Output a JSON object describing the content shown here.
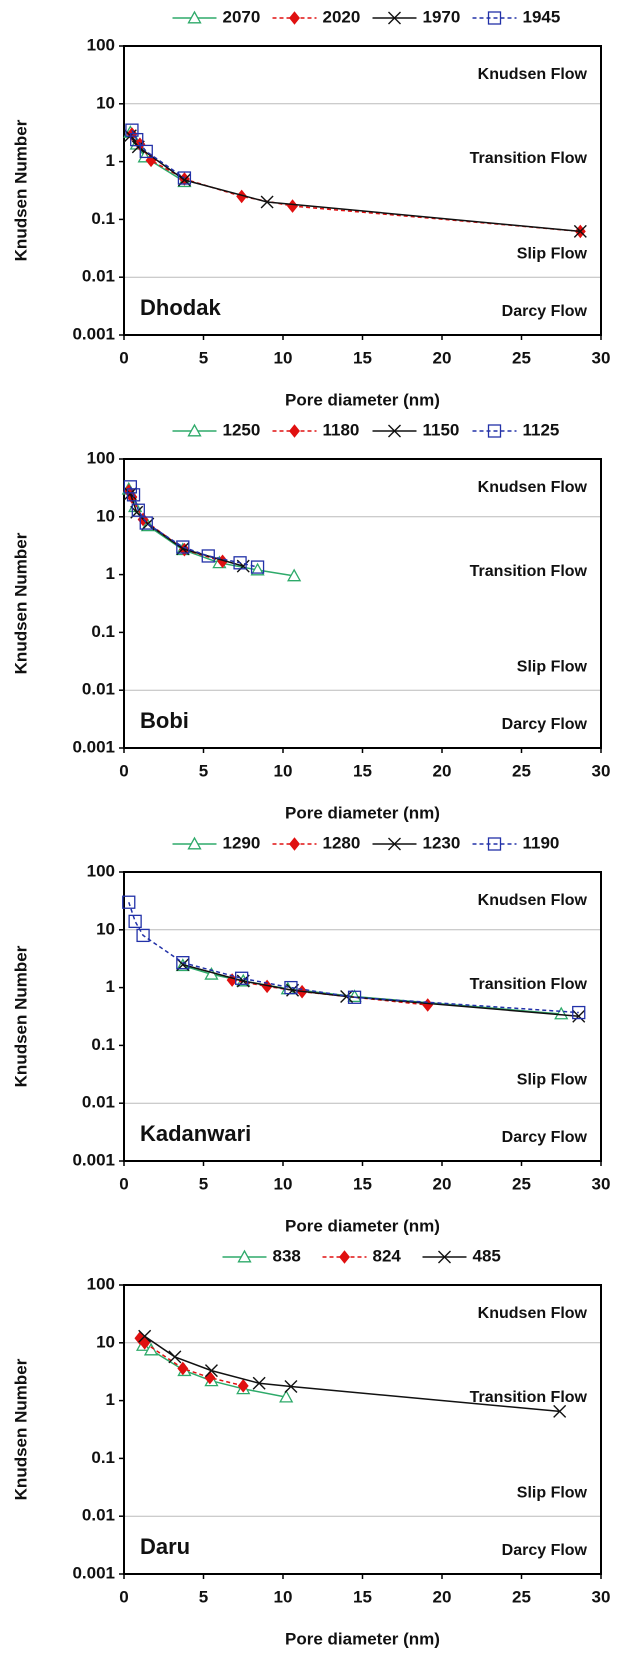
{
  "chart_data": [
    {
      "type": "line",
      "label": "Dhodak",
      "x_label": "Pore diameter (nm)",
      "y_label": "Knudsen Number",
      "regions": [
        "Knudsen Flow",
        "Transition Flow",
        "Slip Flow",
        "Darcy Flow"
      ],
      "xlim": [
        0,
        30
      ],
      "xticks": [
        0,
        5,
        10,
        15,
        20,
        25,
        30
      ],
      "ylim": [
        0.001,
        100
      ],
      "yticks": [
        0.001,
        0.01,
        0.1,
        1,
        10,
        100
      ],
      "log_y": true,
      "grid_lines": [
        10,
        0.01
      ],
      "series": [
        {
          "name": "2070",
          "color": "#2eaa6a",
          "marker": "triangle",
          "dash": false,
          "x": [
            0.4,
            0.8,
            1.3,
            3.8
          ],
          "values": [
            3.2,
            2.0,
            1.2,
            0.45
          ]
        },
        {
          "name": "2020",
          "color": "#e01010",
          "marker": "diamond",
          "dash": true,
          "x": [
            0.5,
            1.0,
            1.7,
            3.8,
            7.4,
            10.6,
            28.7
          ],
          "values": [
            3.0,
            2.0,
            1.05,
            0.5,
            0.25,
            0.17,
            0.062
          ]
        },
        {
          "name": "1970",
          "color": "#111111",
          "marker": "cross",
          "dash": false,
          "x": [
            0.4,
            0.9,
            3.8,
            9.0,
            28.7
          ],
          "values": [
            2.8,
            1.8,
            0.48,
            0.2,
            0.062
          ]
        },
        {
          "name": "1945",
          "color": "#2231a8",
          "marker": "square",
          "dash": true,
          "x": [
            0.5,
            0.8,
            1.4,
            3.8
          ],
          "values": [
            3.5,
            2.4,
            1.5,
            0.52
          ]
        }
      ]
    },
    {
      "type": "line",
      "label": "Bobi",
      "x_label": "Pore diameter (nm)",
      "y_label": "Knudsen Number",
      "regions": [
        "Knudsen Flow",
        "Transition Flow",
        "Slip Flow",
        "Darcy Flow"
      ],
      "xlim": [
        0,
        30
      ],
      "xticks": [
        0,
        5,
        10,
        15,
        20,
        25,
        30
      ],
      "ylim": [
        0.001,
        100
      ],
      "yticks": [
        0.001,
        0.01,
        0.1,
        1,
        10,
        100
      ],
      "log_y": true,
      "grid_lines": [
        10,
        0.01
      ],
      "series": [
        {
          "name": "1250",
          "color": "#2eaa6a",
          "marker": "triangle",
          "dash": false,
          "x": [
            0.3,
            0.7,
            1.5,
            3.7,
            6.0,
            8.4,
            10.7
          ],
          "values": [
            30,
            15,
            7,
            2.7,
            1.6,
            1.2,
            0.95
          ]
        },
        {
          "name": "1180",
          "color": "#e01010",
          "marker": "diamond",
          "dash": true,
          "x": [
            0.3,
            0.5,
            1.2,
            3.8,
            6.2
          ],
          "values": [
            28,
            22,
            9,
            2.7,
            1.7
          ]
        },
        {
          "name": "1150",
          "color": "#111111",
          "marker": "cross",
          "dash": false,
          "x": [
            0.4,
            0.8,
            1.5,
            3.7,
            7.5
          ],
          "values": [
            25,
            12,
            7.5,
            2.8,
            1.4
          ]
        },
        {
          "name": "1125",
          "color": "#2231a8",
          "marker": "square",
          "dash": true,
          "x": [
            0.4,
            0.6,
            0.9,
            1.4,
            3.7,
            5.3,
            7.3,
            8.4
          ],
          "values": [
            33,
            24,
            13,
            7.8,
            3.0,
            2.1,
            1.6,
            1.35
          ]
        }
      ]
    },
    {
      "type": "line",
      "label": "Kadanwari",
      "x_label": "Pore diameter (nm)",
      "y_label": "Knudsen Number",
      "regions": [
        "Knudsen Flow",
        "Transition Flow",
        "Slip Flow",
        "Darcy Flow"
      ],
      "xlim": [
        0,
        30
      ],
      "xticks": [
        0,
        5,
        10,
        15,
        20,
        25,
        30
      ],
      "ylim": [
        0.001,
        100
      ],
      "yticks": [
        0.001,
        0.01,
        0.1,
        1,
        10,
        100
      ],
      "log_y": true,
      "grid_lines": [
        10,
        0.01
      ],
      "series": [
        {
          "name": "1290",
          "color": "#2eaa6a",
          "marker": "triangle",
          "dash": false,
          "x": [
            3.7,
            5.5,
            7.5,
            10.3,
            14.5,
            27.5
          ],
          "values": [
            2.4,
            1.7,
            1.3,
            0.95,
            0.7,
            0.35
          ]
        },
        {
          "name": "1280",
          "color": "#e01010",
          "marker": "diamond",
          "dash": true,
          "x": [
            6.8,
            9.0,
            11.2,
            19.1
          ],
          "values": [
            1.35,
            1.05,
            0.85,
            0.5
          ]
        },
        {
          "name": "1230",
          "color": "#111111",
          "marker": "cross",
          "dash": false,
          "x": [
            3.7,
            7.5,
            10.6,
            14.0,
            28.6
          ],
          "values": [
            2.5,
            1.3,
            0.9,
            0.7,
            0.32
          ]
        },
        {
          "name": "1190",
          "color": "#2231a8",
          "marker": "square",
          "dash": true,
          "x": [
            0.3,
            0.7,
            1.2,
            3.7,
            7.4,
            10.5,
            14.5,
            28.6
          ],
          "values": [
            30,
            14,
            8,
            2.7,
            1.45,
            1.0,
            0.68,
            0.37
          ]
        }
      ]
    },
    {
      "type": "line",
      "label": "Daru",
      "x_label": "Pore diameter (nm)",
      "y_label": "Knudsen Number",
      "regions": [
        "Knudsen Flow",
        "Transition Flow",
        "Slip Flow",
        "Darcy Flow"
      ],
      "xlim": [
        0,
        30
      ],
      "xticks": [
        0,
        5,
        10,
        15,
        20,
        25,
        30
      ],
      "ylim": [
        0.001,
        100
      ],
      "yticks": [
        0.001,
        0.01,
        0.1,
        1,
        10,
        100
      ],
      "log_y": true,
      "grid_lines": [
        10,
        0.01
      ],
      "series": [
        {
          "name": "838",
          "color": "#2eaa6a",
          "marker": "triangle",
          "dash": false,
          "x": [
            1.2,
            1.7,
            3.8,
            5.5,
            7.5,
            10.2
          ],
          "values": [
            9,
            7.5,
            3.3,
            2.2,
            1.6,
            1.15
          ]
        },
        {
          "name": "824",
          "color": "#e01010",
          "marker": "diamond",
          "dash": true,
          "x": [
            1.0,
            1.3,
            3.7,
            5.4,
            7.5
          ],
          "values": [
            12,
            10,
            3.6,
            2.5,
            1.8
          ]
        },
        {
          "name": "485",
          "color": "#111111",
          "marker": "cross",
          "dash": false,
          "x": [
            1.3,
            3.2,
            5.5,
            8.5,
            10.5,
            27.4
          ],
          "values": [
            13,
            5.7,
            3.3,
            2.0,
            1.75,
            0.65
          ]
        }
      ]
    }
  ]
}
